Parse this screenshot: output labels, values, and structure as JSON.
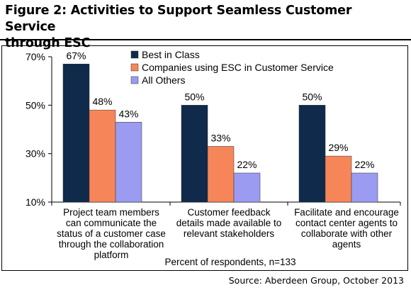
{
  "figure": {
    "title_line1": "Figure 2: Activities to Support Seamless Customer Service",
    "title_line2": "through ESC",
    "source": "Source: Aberdeen Group, October 2013"
  },
  "chart_data": {
    "type": "bar",
    "categories": [
      [
        "Project team members",
        "can communicate the",
        "status of a customer case",
        "through the collaboration",
        "platform"
      ],
      [
        "Customer feedback",
        "details made available to",
        "relevant stakeholders"
      ],
      [
        "Facilitate and encourage",
        "contact center agents to",
        "collaborate with other",
        "agents"
      ]
    ],
    "series": [
      {
        "name": "Best in Class",
        "values": [
          67,
          50,
          50
        ],
        "color": "#0f2a4a"
      },
      {
        "name": "Companies using ESC in Customer Service",
        "values": [
          48,
          33,
          29
        ],
        "color": "#f6865a"
      },
      {
        "name": "All Others",
        "values": [
          43,
          22,
          22
        ],
        "color": "#9b9bf2"
      }
    ],
    "value_labels": [
      [
        "67%",
        "48%",
        "43%"
      ],
      [
        "50%",
        "33%",
        "22%"
      ],
      [
        "50%",
        "29%",
        "22%"
      ]
    ],
    "yticks": [
      "10%",
      "30%",
      "50%",
      "70%"
    ],
    "ytick_values": [
      10,
      30,
      50,
      70
    ],
    "ylim": [
      10,
      70
    ],
    "xlabel": "Percent of respondents, n=133",
    "ylabel": "",
    "legend_position": "top-right",
    "grid": false
  }
}
